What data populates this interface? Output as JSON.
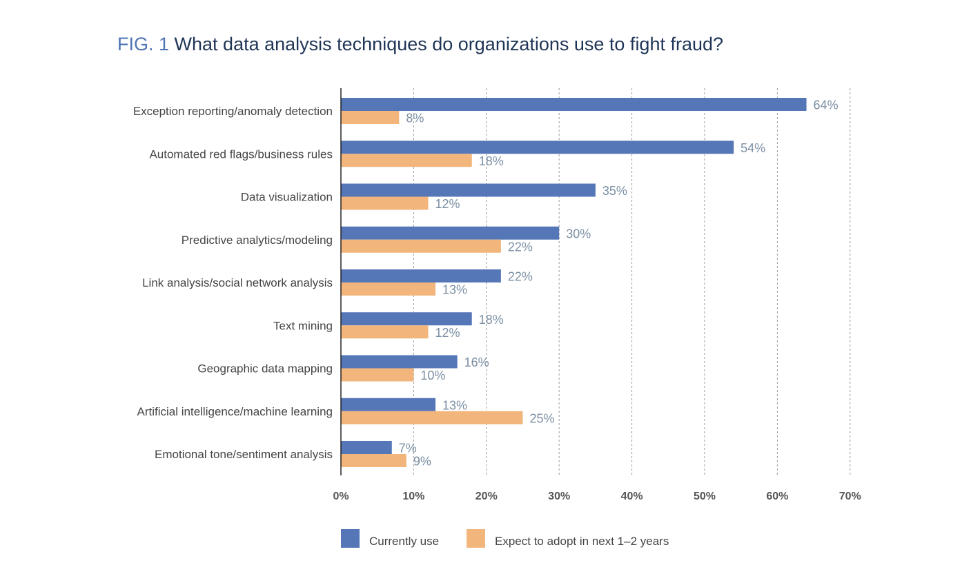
{
  "figure": {
    "prefix": "FIG. 1",
    "question": "What data analysis techniques do organizations use to fight fraud?"
  },
  "chart_data": {
    "type": "bar",
    "orientation": "horizontal",
    "categories": [
      "Exception reporting/anomaly detection",
      "Automated red flags/business rules",
      "Data visualization",
      "Predictive analytics/modeling",
      "Link analysis/social network analysis",
      "Text mining",
      "Geographic data mapping",
      "Artificial intelligence/machine learning",
      "Emotional tone/sentiment analysis"
    ],
    "series": [
      {
        "name": "Currently use",
        "color": "#5577b8",
        "values": [
          64,
          54,
          35,
          30,
          22,
          18,
          16,
          13,
          7
        ]
      },
      {
        "name": "Expect to adopt in next 1–2 years",
        "color": "#f2b57b",
        "values": [
          8,
          18,
          12,
          22,
          13,
          12,
          10,
          25,
          9
        ]
      }
    ],
    "value_suffix": "%",
    "xlim": [
      0,
      70
    ],
    "x_ticks": [
      "0%",
      "10%",
      "20%",
      "30%",
      "40%",
      "50%",
      "60%",
      "70%"
    ],
    "title": "",
    "xlabel": "",
    "ylabel": "",
    "grid": true,
    "legend_position": "bottom",
    "colors": {
      "label_text": "#444444",
      "value_text": "#7b8fa3",
      "tick_text": "#555555",
      "gridline": "#9a9a9a",
      "axis": "#222222"
    }
  }
}
